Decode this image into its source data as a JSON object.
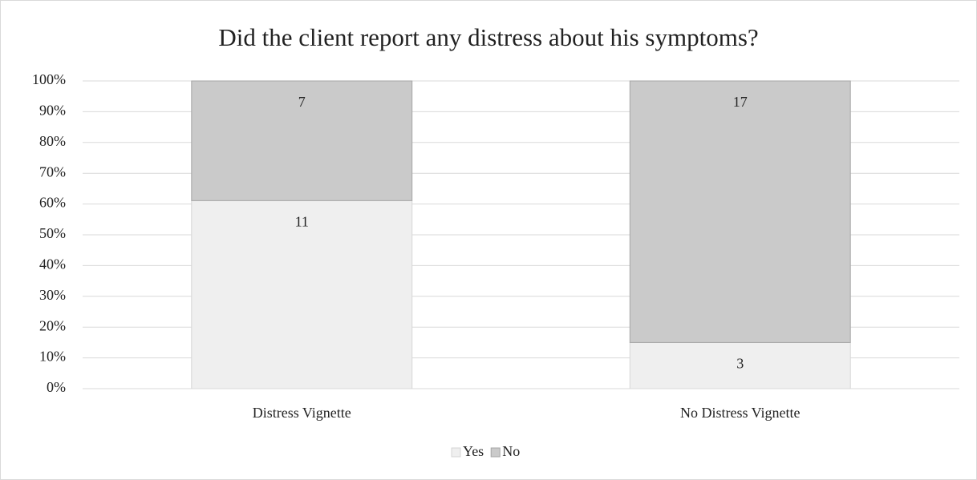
{
  "chart_data": {
    "type": "bar",
    "stacking": "percent",
    "title": "Did the client report any distress about his symptoms?",
    "categories": [
      "Distress Vignette",
      "No Distress Vignette"
    ],
    "series": [
      {
        "name": "Yes",
        "color": "#efefef",
        "values": [
          11,
          3
        ]
      },
      {
        "name": "No",
        "color": "#cacaca",
        "values": [
          7,
          17
        ]
      }
    ],
    "ylim": [
      0,
      100
    ],
    "yticks": [
      {
        "value": 0,
        "label": "0%"
      },
      {
        "value": 10,
        "label": "10%"
      },
      {
        "value": 20,
        "label": "20%"
      },
      {
        "value": 30,
        "label": "30%"
      },
      {
        "value": 40,
        "label": "40%"
      },
      {
        "value": 50,
        "label": "50%"
      },
      {
        "value": 60,
        "label": "60%"
      },
      {
        "value": 70,
        "label": "70%"
      },
      {
        "value": 80,
        "label": "80%"
      },
      {
        "value": 90,
        "label": "90%"
      },
      {
        "value": 100,
        "label": "100%"
      }
    ],
    "grid": true,
    "legend": "bottom"
  }
}
